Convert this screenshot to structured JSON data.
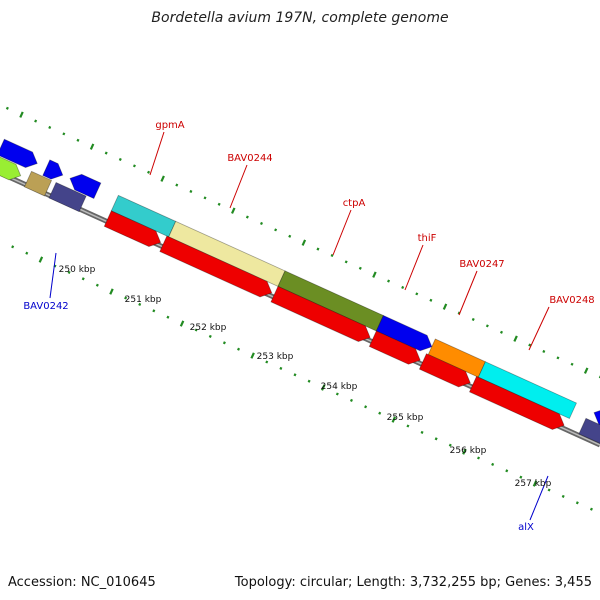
{
  "title": "Bordetella avium 197N, complete genome",
  "accession": "Accession: NC_010645",
  "summary": "Topology: circular; Length: 3,732,255 bp; Genes: 3,455",
  "scale_labels": [
    "250 kbp",
    "251 kbp",
    "252 kbp",
    "253 kbp",
    "254 kbp",
    "255 kbp",
    "256 kbp",
    "257 kbp"
  ],
  "gene_labels": [
    {
      "name": "gpmA",
      "strand": "forward",
      "color": "#cc0000"
    },
    {
      "name": "BAV0244",
      "strand": "forward",
      "color": "#cc0000"
    },
    {
      "name": "ctpA",
      "strand": "forward",
      "color": "#cc0000"
    },
    {
      "name": "thiF",
      "strand": "forward",
      "color": "#cc0000"
    },
    {
      "name": "BAV0247",
      "strand": "forward",
      "color": "#cc0000"
    },
    {
      "name": "BAV0248",
      "strand": "forward",
      "color": "#cc0000"
    },
    {
      "name": "BAV0242",
      "strand": "reverse",
      "color": "#0000cc"
    },
    {
      "name": "alX",
      "strand": "reverse",
      "color": "#0000cc"
    }
  ],
  "colors": {
    "backbone": "#888888",
    "cds": "#ee0000",
    "gpmA": "#33cccc",
    "BAV0244": "#eee8a0",
    "ctpA": "#6b8e23",
    "thiF": "#0000ee",
    "BAV0247": "#ff8c00",
    "BAV0248": "#00eeee",
    "ticks": "#228B22"
  }
}
